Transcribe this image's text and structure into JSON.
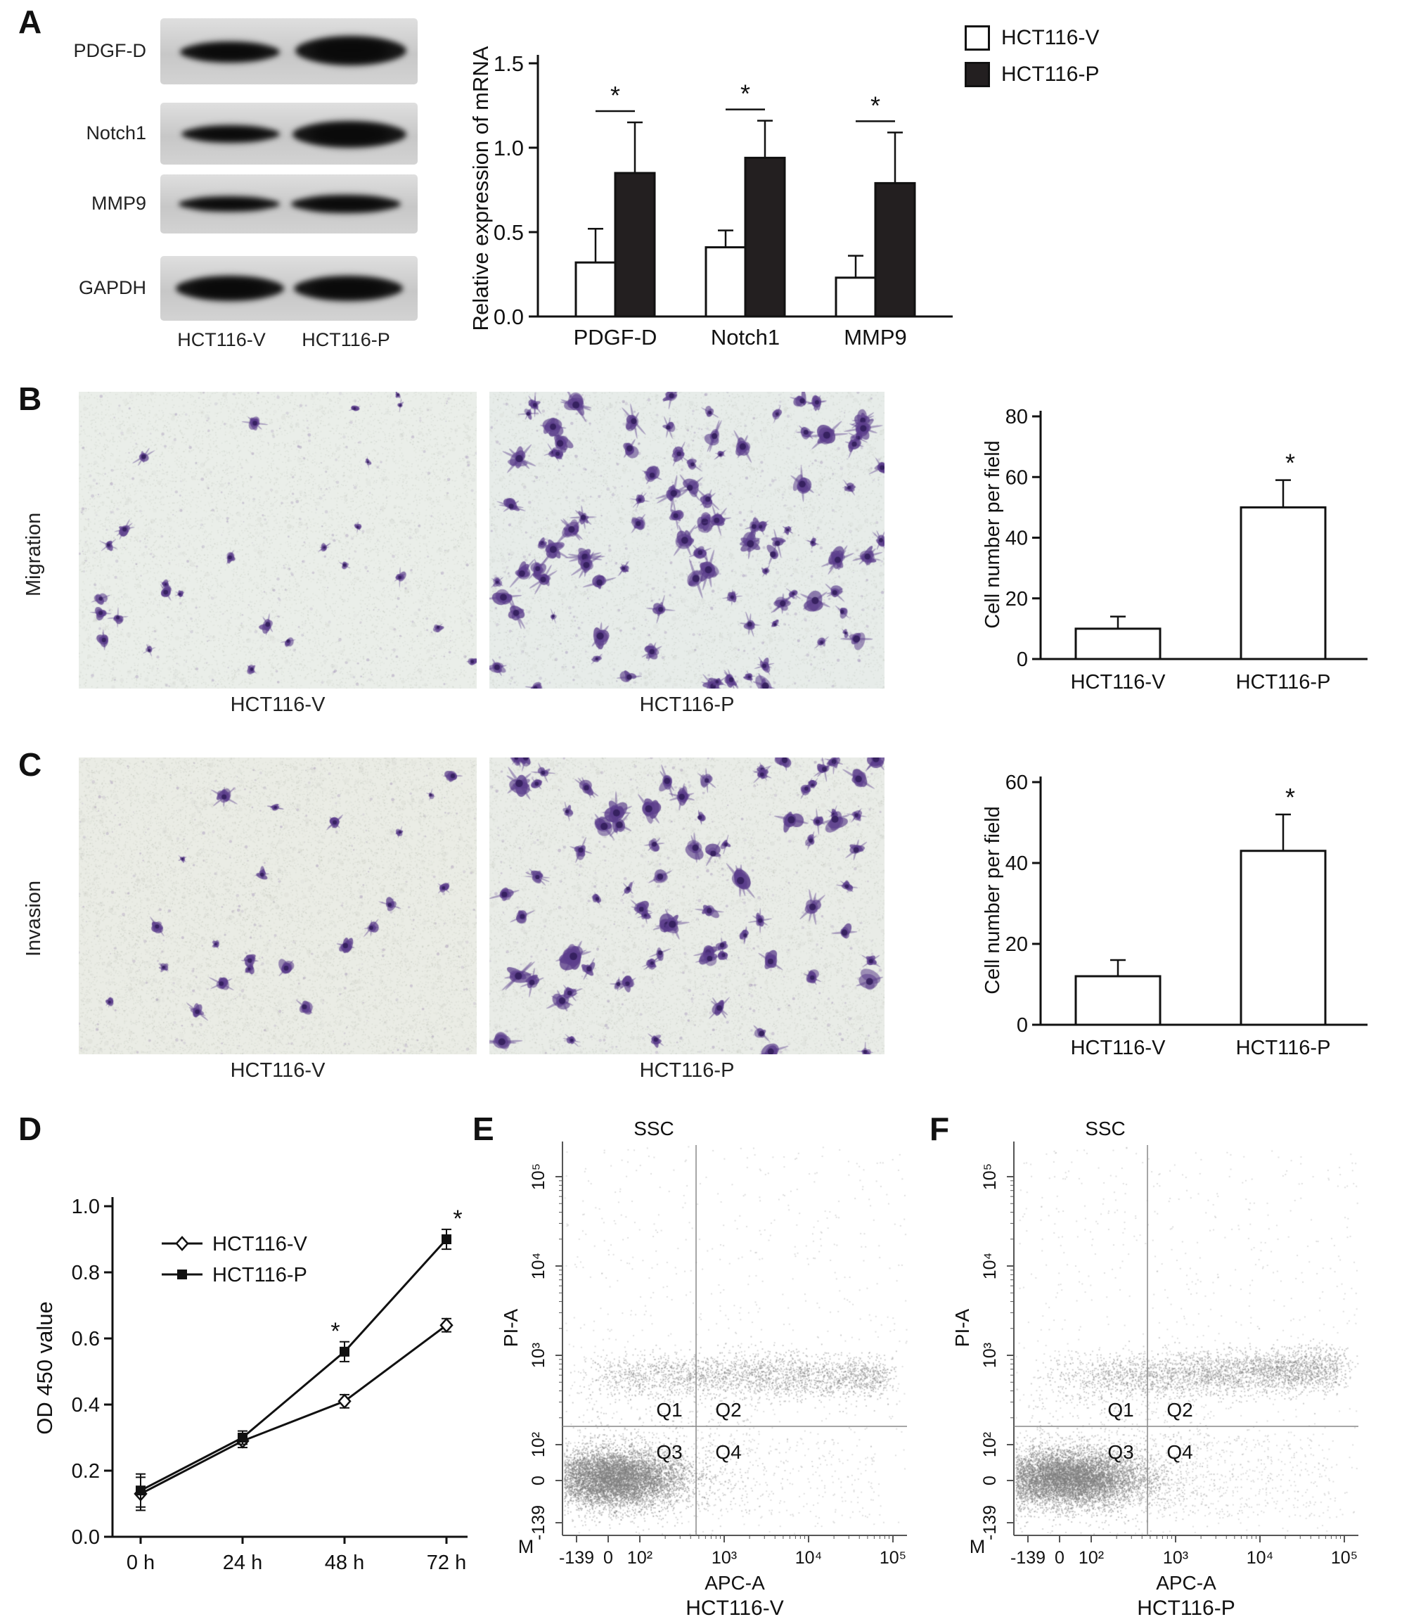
{
  "figure": {
    "panels": {
      "a": {
        "letter": "A",
        "blot": {
          "row_labels": [
            "PDGF-D",
            "Notch1",
            "MMP9",
            "GAPDH"
          ],
          "lane_labels": [
            "HCT116-V",
            "HCT116-P"
          ]
        },
        "legend": [
          {
            "label": "HCT116-V",
            "fill": "#ffffff"
          },
          {
            "label": "HCT116-P",
            "fill": "#231f20"
          }
        ]
      },
      "b": {
        "letter": "B",
        "side_label": "Migration",
        "image_labels": [
          "HCT116-V",
          "HCT116-P"
        ]
      },
      "c": {
        "letter": "C",
        "side_label": "Invasion",
        "image_labels": [
          "HCT116-V",
          "HCT116-P"
        ]
      },
      "d": {
        "letter": "D"
      },
      "e": {
        "letter": "E"
      },
      "f": {
        "letter": "F"
      }
    }
  },
  "chart_data": [
    {
      "id": "A",
      "type": "bar",
      "categories": [
        "PDGF-D",
        "Notch1",
        "MMP9"
      ],
      "series": [
        {
          "name": "HCT116-V",
          "fill": "#ffffff",
          "values": [
            0.32,
            0.41,
            0.23
          ],
          "errors": [
            0.2,
            0.1,
            0.13
          ]
        },
        {
          "name": "HCT116-P",
          "fill": "#231f20",
          "values": [
            0.85,
            0.94,
            0.79
          ],
          "errors": [
            0.3,
            0.22,
            0.3
          ]
        }
      ],
      "ylabel": "Relative expression of mRNA",
      "ylim": [
        0,
        1.5
      ],
      "yticks": [
        "0.0",
        "0.5",
        "1.0",
        "1.5"
      ],
      "significance": [
        "*",
        "*",
        "*"
      ],
      "legend_position": "top-right"
    },
    {
      "id": "B",
      "type": "bar",
      "categories": [
        "HCT116-V",
        "HCT116-P"
      ],
      "values": [
        10,
        50
      ],
      "errors": [
        4,
        9
      ],
      "bar_fill": "#ffffff",
      "ylabel": "Cell number per field",
      "ylim": [
        0,
        80
      ],
      "yticks": [
        "0",
        "20",
        "40",
        "60",
        "80"
      ],
      "significance": [
        "",
        "*"
      ]
    },
    {
      "id": "C",
      "type": "bar",
      "categories": [
        "HCT116-V",
        "HCT116-P"
      ],
      "values": [
        12,
        43
      ],
      "errors": [
        4,
        9
      ],
      "bar_fill": "#ffffff",
      "ylabel": "Cell number per field",
      "ylim": [
        0,
        60
      ],
      "yticks": [
        "0",
        "20",
        "40",
        "60"
      ],
      "significance": [
        "",
        "*"
      ]
    },
    {
      "id": "D",
      "type": "line",
      "x": [
        "0 h",
        "24 h",
        "48 h",
        "72 h"
      ],
      "series": [
        {
          "name": "HCT116-V",
          "marker": "open-diamond",
          "values": [
            0.13,
            0.29,
            0.41,
            0.64
          ],
          "errors": [
            0.05,
            0.02,
            0.02,
            0.02
          ]
        },
        {
          "name": "HCT116-P",
          "marker": "filled-square",
          "values": [
            0.14,
            0.3,
            0.56,
            0.9
          ],
          "errors": [
            0.05,
            0.02,
            0.03,
            0.03
          ]
        }
      ],
      "ylabel": "OD 450 value",
      "ylim": [
        0,
        1.0
      ],
      "yticks": [
        "0.0",
        "0.2",
        "0.4",
        "0.6",
        "0.8",
        "1.0"
      ],
      "significance": [
        {
          "x": "48 h",
          "series": "HCT116-P",
          "mark": "*"
        },
        {
          "x": "72 h",
          "series": "HCT116-P",
          "mark": "*"
        }
      ],
      "legend_position": "top-left"
    },
    {
      "id": "E",
      "type": "scatter",
      "title": "SSC",
      "xlabel": "APC-A",
      "ylabel": "PI-A",
      "xticks": [
        "-139",
        "0",
        "10²",
        "10³",
        "10⁴",
        "10⁵"
      ],
      "yticks": [
        "-139",
        "0",
        "10²",
        "10³",
        "10⁴",
        "10⁵"
      ],
      "quadrant_labels": [
        "Q1",
        "Q2",
        "Q3",
        "Q4"
      ],
      "corner_label": "M",
      "sample_label": "HCT116-V",
      "populations": [
        {
          "name": "main unstained cloud",
          "approx_center_x": "10²",
          "approx_center_y": "0",
          "density": "dense"
        },
        {
          "name": "PI-positive band",
          "approx_center_x": "10³",
          "approx_center_y": "10³",
          "density": "moderate"
        }
      ]
    },
    {
      "id": "F",
      "type": "scatter",
      "title": "SSC",
      "xlabel": "APC-A",
      "ylabel": "PI-A",
      "xticks": [
        "-139",
        "0",
        "10²",
        "10³",
        "10⁴",
        "10⁵"
      ],
      "yticks": [
        "-139",
        "0",
        "10²",
        "10³",
        "10⁴",
        "10⁵"
      ],
      "quadrant_labels": [
        "Q1",
        "Q2",
        "Q3",
        "Q4"
      ],
      "corner_label": "M",
      "sample_label": "HCT116-P",
      "populations": [
        {
          "name": "main unstained cloud",
          "approx_center_x": "10²",
          "approx_center_y": "0",
          "density": "dense"
        },
        {
          "name": "PI-positive band",
          "approx_center_x": "10³",
          "approx_center_y": "10³",
          "density": "moderate, extends toward 10⁴"
        }
      ]
    }
  ]
}
